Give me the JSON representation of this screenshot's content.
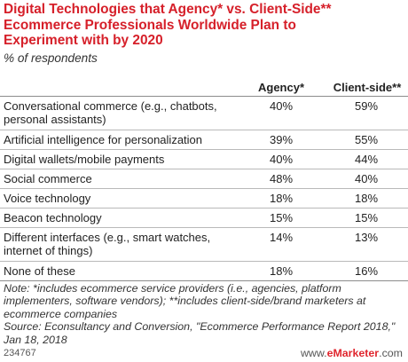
{
  "title": "Digital Technologies that Agency* vs. Client-Side**\nEcommerce Professionals Worldwide Plan to\nExperiment with by 2020",
  "subtitle": "% of respondents",
  "colors": {
    "title": "#d6202a",
    "brand_accent": "#e0262e"
  },
  "chart_data": {
    "type": "table",
    "columns": [
      "",
      "Agency*",
      "Client-side**"
    ],
    "rows": [
      {
        "label": "Conversational commerce (e.g., chatbots,\npersonal assistants)",
        "agency": "40%",
        "client": "59%"
      },
      {
        "label": "Artificial intelligence for personalization",
        "agency": "39%",
        "client": "55%"
      },
      {
        "label": "Digital wallets/mobile payments",
        "agency": "40%",
        "client": "44%"
      },
      {
        "label": "Social commerce",
        "agency": "48%",
        "client": "40%"
      },
      {
        "label": "Voice technology",
        "agency": "18%",
        "client": "18%"
      },
      {
        "label": "Beacon technology",
        "agency": "15%",
        "client": "15%"
      },
      {
        "label": "Different interfaces (e.g., smart watches,\ninternet of things)",
        "agency": "14%",
        "client": "13%"
      },
      {
        "label": "None of these",
        "agency": "18%",
        "client": "16%"
      }
    ]
  },
  "note": "Note: *includes ecommerce service providers (i.e., agencies, platform implementers, software vendors); **includes client-side/brand marketers at ecommerce companies\nSource: Econsultancy and Conversion, \"Ecommerce Performance Report 2018,\" Jan 18, 2018",
  "footer": {
    "id": "234767",
    "brand_prefix": "www.",
    "brand_name": "eMarketer",
    "brand_suffix": ".com"
  }
}
